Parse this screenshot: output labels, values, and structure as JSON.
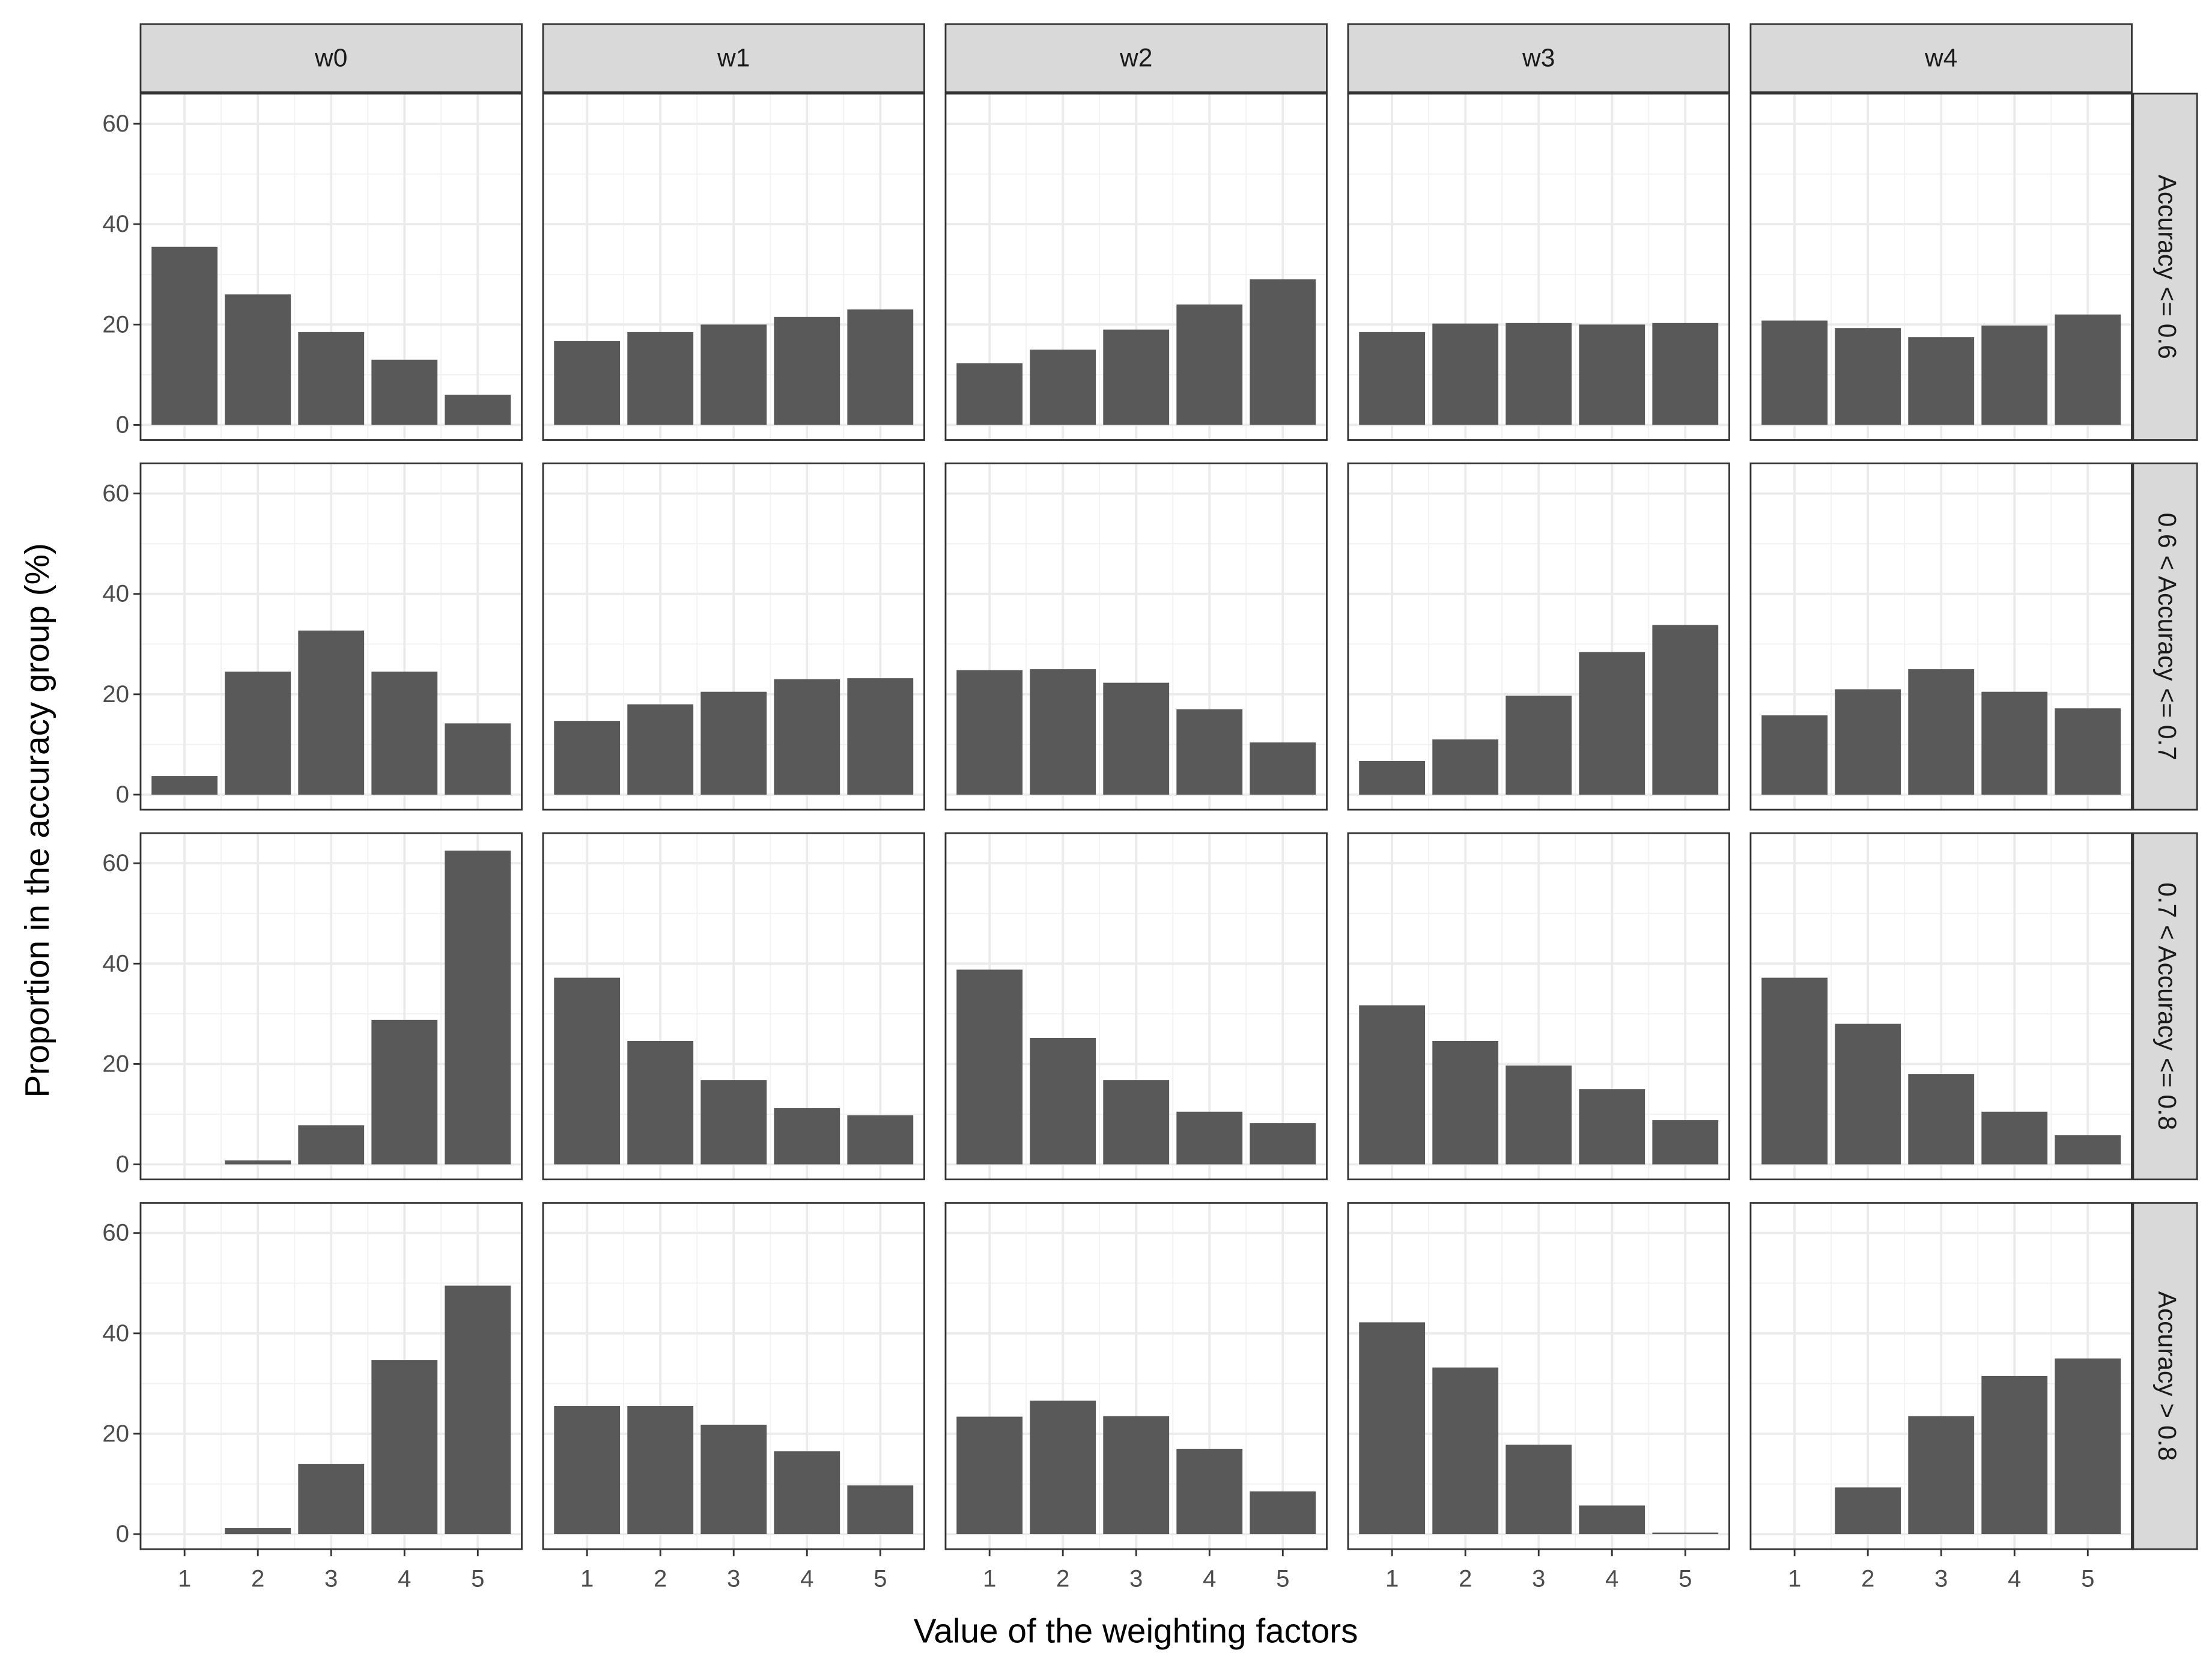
{
  "chart_data": {
    "type": "bar",
    "x_label": "Value of the weighting factors",
    "y_label": "Proportion in the accuracy group (%)",
    "categories": [
      1,
      2,
      3,
      4,
      5
    ],
    "xlim": [
      0.4,
      5.6
    ],
    "ylim": [
      -3,
      66
    ],
    "yticks": [
      0,
      20,
      40,
      60
    ],
    "color": "#595959",
    "grid": true,
    "columns": [
      "w0",
      "w1",
      "w2",
      "w3",
      "w4"
    ],
    "rows": [
      {
        "label": "Accuracy <= 0.6",
        "panels": [
          [
            35.5,
            26,
            18.5,
            13,
            6
          ],
          [
            16.7,
            18.5,
            20,
            21.5,
            23
          ],
          [
            12.3,
            15,
            19,
            24,
            29
          ],
          [
            18.5,
            20.2,
            20.3,
            20,
            20.3
          ],
          [
            20.8,
            19.3,
            17.5,
            19.8,
            22
          ]
        ]
      },
      {
        "label": "0.6 < Accuracy <= 0.7",
        "panels": [
          [
            3.7,
            24.5,
            32.7,
            24.5,
            14.2
          ],
          [
            14.7,
            18,
            20.5,
            23,
            23.2
          ],
          [
            24.8,
            25,
            22.3,
            17,
            10.4
          ],
          [
            6.7,
            11,
            19.7,
            28.4,
            33.8
          ],
          [
            15.8,
            21,
            25,
            20.5,
            17.2
          ]
        ]
      },
      {
        "label": "0.7 < Accuracy <= 0.8",
        "panels": [
          [
            0,
            0.8,
            7.8,
            28.8,
            62.5
          ],
          [
            37.2,
            24.6,
            16.8,
            11.2,
            9.8
          ],
          [
            38.8,
            25.2,
            16.8,
            10.5,
            8.2
          ],
          [
            31.7,
            24.6,
            19.7,
            15,
            8.8
          ],
          [
            37.2,
            28,
            18,
            10.5,
            5.8
          ]
        ]
      },
      {
        "label": "Accuracy > 0.8",
        "panels": [
          [
            0,
            1.2,
            14,
            34.7,
            49.5
          ],
          [
            25.5,
            25.5,
            21.8,
            16.5,
            9.7
          ],
          [
            23.4,
            26.6,
            23.5,
            17,
            8.5
          ],
          [
            42.2,
            33.2,
            17.8,
            5.7,
            0.3
          ],
          [
            0,
            9.3,
            23.5,
            31.5,
            35
          ]
        ]
      }
    ]
  }
}
